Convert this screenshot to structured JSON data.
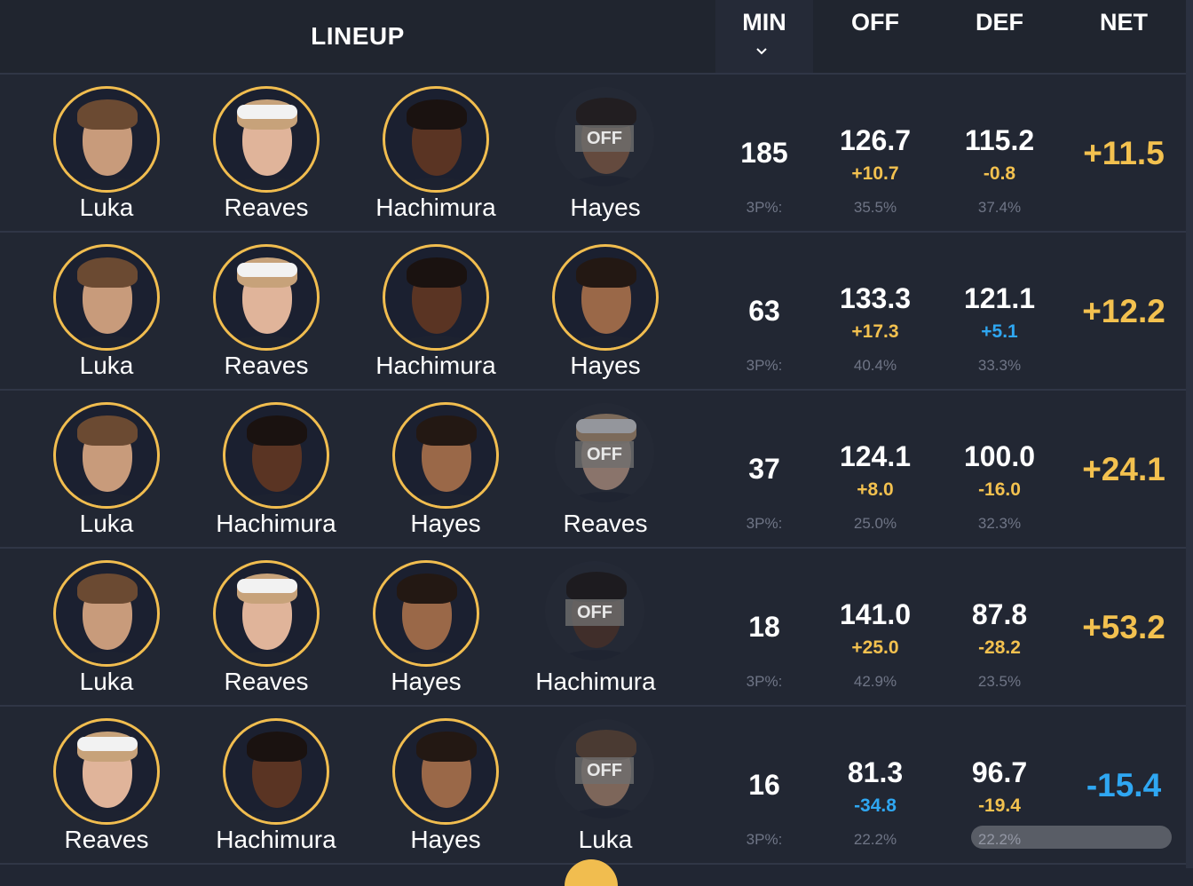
{
  "header": {
    "lineup": "LINEUP",
    "min": "MIN",
    "off": "OFF",
    "def": "DEF",
    "net": "NET"
  },
  "off_label": "OFF",
  "three_pt_label": "3P%:",
  "colors": {
    "background": "#212633",
    "avatar_border": "#f1bd4f",
    "positive": "#f3c14f",
    "negative": "#2fa7f2",
    "muted": "#6f7586"
  },
  "rows": [
    {
      "players": [
        {
          "name": "Luka",
          "on": true
        },
        {
          "name": "Reaves",
          "on": true
        },
        {
          "name": "Hachimura",
          "on": true
        },
        {
          "name": "Hayes",
          "on": false
        }
      ],
      "min": "185",
      "off": "126.7",
      "off_diff": "+10.7",
      "off_3p": "35.5%",
      "def": "115.2",
      "def_diff": "-0.8",
      "def_3p": "37.4%",
      "net": "+11.5"
    },
    {
      "players": [
        {
          "name": "Luka",
          "on": true
        },
        {
          "name": "Reaves",
          "on": true
        },
        {
          "name": "Hachimura",
          "on": true
        },
        {
          "name": "Hayes",
          "on": true
        }
      ],
      "min": "63",
      "off": "133.3",
      "off_diff": "+17.3",
      "off_3p": "40.4%",
      "def": "121.1",
      "def_diff": "+5.1",
      "def_3p": "33.3%",
      "net": "+12.2"
    },
    {
      "players": [
        {
          "name": "Luka",
          "on": true
        },
        {
          "name": "Hachimura",
          "on": true
        },
        {
          "name": "Hayes",
          "on": true
        },
        {
          "name": "Reaves",
          "on": false
        }
      ],
      "min": "37",
      "off": "124.1",
      "off_diff": "+8.0",
      "off_3p": "25.0%",
      "def": "100.0",
      "def_diff": "-16.0",
      "def_3p": "32.3%",
      "net": "+24.1"
    },
    {
      "players": [
        {
          "name": "Luka",
          "on": true
        },
        {
          "name": "Reaves",
          "on": true
        },
        {
          "name": "Hayes",
          "on": true
        },
        {
          "name": "Hachimura",
          "on": false
        }
      ],
      "min": "18",
      "off": "141.0",
      "off_diff": "+25.0",
      "off_3p": "42.9%",
      "def": "87.8",
      "def_diff": "-28.2",
      "def_3p": "23.5%",
      "net": "+53.2"
    },
    {
      "players": [
        {
          "name": "Reaves",
          "on": true
        },
        {
          "name": "Hachimura",
          "on": true
        },
        {
          "name": "Hayes",
          "on": true
        },
        {
          "name": "Luka",
          "on": false
        }
      ],
      "min": "16",
      "off": "81.3",
      "off_diff": "-34.8",
      "off_3p": "22.2%",
      "def": "96.7",
      "def_diff": "-19.4",
      "def_3p": "22.2%",
      "net": "-15.4"
    }
  ]
}
